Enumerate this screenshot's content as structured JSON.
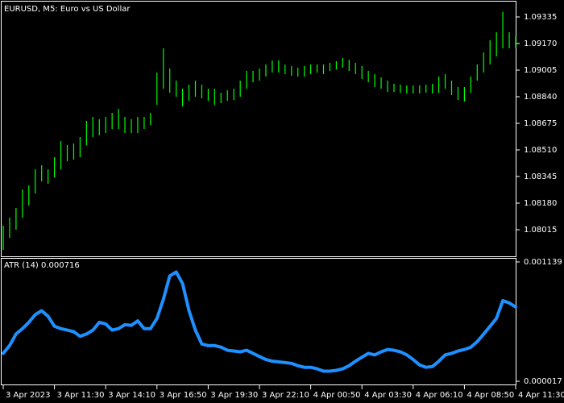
{
  "chart_data": [
    {
      "type": "hilo",
      "title": "EURUSD, M5:  Euro vs US Dollar",
      "color": "#00ff00",
      "high": [
        1.0804,
        1.0809,
        1.0815,
        1.08265,
        1.0829,
        1.0839,
        1.08415,
        1.0839,
        1.08465,
        1.08565,
        1.0854,
        1.0855,
        1.0859,
        1.0869,
        1.08715,
        1.087,
        1.08715,
        1.0874,
        1.08765,
        1.08715,
        1.087,
        1.08715,
        1.08715,
        1.0874,
        1.0899,
        1.0914,
        1.09015,
        1.0894,
        1.0889,
        1.08915,
        1.0894,
        1.08915,
        1.0889,
        1.0889,
        1.08865,
        1.0888,
        1.0889,
        1.0894,
        1.09,
        1.09,
        1.09015,
        1.0904,
        1.09065,
        1.09065,
        1.0904,
        1.0903,
        1.0902,
        1.0903,
        1.0904,
        1.0904,
        1.0904,
        1.0905,
        1.0906,
        1.0908,
        1.0907,
        1.0905,
        1.0903,
        1.09,
        1.0898,
        1.0896,
        1.0894,
        1.0892,
        1.08915,
        1.0891,
        1.0891,
        1.0891,
        1.08915,
        1.0892,
        1.08965,
        1.0898,
        1.0894,
        1.089,
        1.089,
        1.08965,
        1.0904,
        1.09115,
        1.0919,
        1.0924,
        1.09365,
        1.0924,
        1.09215
      ],
      "low": [
        1.0789,
        1.07965,
        1.08015,
        1.0809,
        1.08165,
        1.0824,
        1.08315,
        1.083,
        1.0834,
        1.0839,
        1.0844,
        1.0845,
        1.08465,
        1.0854,
        1.0859,
        1.086,
        1.08615,
        1.0864,
        1.0864,
        1.08615,
        1.08615,
        1.08615,
        1.0864,
        1.08665,
        1.0879,
        1.0889,
        1.08865,
        1.0884,
        1.0878,
        1.08815,
        1.0884,
        1.0883,
        1.08815,
        1.0879,
        1.088,
        1.08815,
        1.0882,
        1.0884,
        1.0889,
        1.0893,
        1.0894,
        1.08965,
        1.0899,
        1.0899,
        1.0898,
        1.0897,
        1.08965,
        1.08965,
        1.0898,
        1.0899,
        1.0898,
        1.09,
        1.0901,
        1.0902,
        1.09,
        1.0898,
        1.0895,
        1.0893,
        1.089,
        1.0889,
        1.0887,
        1.0887,
        1.08865,
        1.0886,
        1.0886,
        1.0886,
        1.08865,
        1.0886,
        1.08865,
        1.0889,
        1.0885,
        1.0882,
        1.0881,
        1.08865,
        1.0894,
        1.0899,
        1.0904,
        1.0909,
        1.0914,
        1.0914,
        1.0914
      ],
      "ylim": [
        1.0785,
        1.0943
      ],
      "yticks": [
        1.09335,
        {
          "value": 1.0917,
          "label": "1.09170"
        },
        1.09005,
        {
          "value": 1.0884,
          "label": "1.08840"
        },
        1.08675,
        {
          "value": 1.0851,
          "label": "1.08510"
        },
        1.08345,
        {
          "value": 1.0818,
          "label": "1.08180"
        },
        1.08015
      ]
    },
    {
      "type": "line",
      "title": "ATR (14) 0.000716",
      "color": "#1e90ff",
      "values": [
        0.000279,
        0.000352,
        0.000461,
        0.000512,
        0.000571,
        0.000644,
        0.00068,
        0.000629,
        0.000534,
        0.000512,
        0.000498,
        0.000483,
        0.00044,
        0.000461,
        0.000498,
        0.000571,
        0.000556,
        0.000498,
        0.000512,
        0.000549,
        0.000542,
        0.000585,
        0.000512,
        0.000512,
        0.000607,
        0.000789,
        0.001008,
        0.001044,
        0.000935,
        0.00068,
        0.000498,
        0.000367,
        0.000352,
        0.000352,
        0.000338,
        0.000308,
        0.000301,
        0.000294,
        0.000308,
        0.000279,
        0.00025,
        0.000221,
        0.000206,
        0.000199,
        0.000192,
        0.000185,
        0.000163,
        0.000148,
        0.000148,
        0.000134,
        0.000112,
        0.000112,
        0.000119,
        0.000134,
        0.000163,
        0.000206,
        0.000243,
        0.000279,
        0.000265,
        0.000294,
        0.000316,
        0.000308,
        0.000294,
        0.000265,
        0.000221,
        0.00017,
        0.000148,
        0.000155,
        0.000206,
        0.000265,
        0.000279,
        0.000301,
        0.000316,
        0.000338,
        0.000389,
        0.000461,
        0.000534,
        0.000607,
        0.000775,
        0.000753,
        0.000716
      ],
      "ylim": [
        1.7e-05,
        0.001139
      ],
      "yticks": [
        0.001139,
        1.7e-05
      ],
      "categories": [
        "3 Apr 2023",
        null,
        null,
        null,
        null,
        null,
        null,
        null,
        "3 Apr 11:30",
        null,
        null,
        null,
        null,
        null,
        null,
        null,
        "3 Apr 14:10",
        null,
        null,
        null,
        null,
        null,
        null,
        null,
        "3 Apr 16:50",
        null,
        null,
        null,
        null,
        null,
        null,
        null,
        "3 Apr 19:30",
        null,
        null,
        null,
        null,
        null,
        null,
        null,
        "3 Apr 22:10",
        null,
        null,
        null,
        null,
        null,
        null,
        null,
        "4 Apr 00:50",
        null,
        null,
        null,
        null,
        null,
        null,
        null,
        "4 Apr 03:30",
        null,
        null,
        null,
        null,
        null,
        null,
        null,
        "4 Apr 06:10",
        null,
        null,
        null,
        null,
        null,
        null,
        null,
        "4 Apr 08:50",
        null,
        null,
        null,
        null,
        null,
        null,
        null,
        "4 Apr 11:30"
      ]
    }
  ]
}
